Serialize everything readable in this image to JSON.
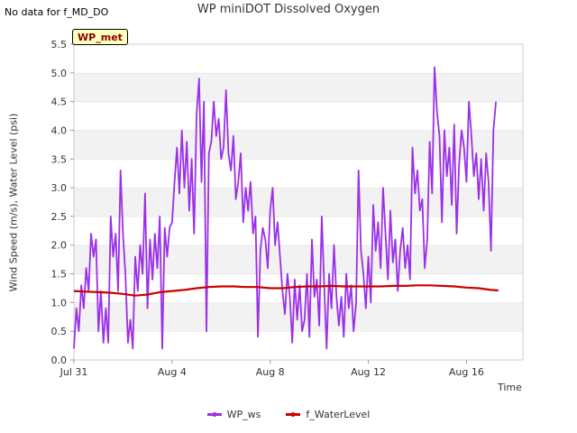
{
  "header": {
    "no_data_text": "No data for f_MD_DO",
    "badge_text": "WP_met"
  },
  "chart_data": {
    "type": "line",
    "title": "WP miniDOT Dissolved Oxygen",
    "xlabel": "Time",
    "ylabel": "Wind Speed (m/s), Water Level (psi)",
    "ylim": [
      0,
      5.5
    ],
    "yticks": [
      0.0,
      0.5,
      1.0,
      1.5,
      2.0,
      2.5,
      3.0,
      3.5,
      4.0,
      4.5,
      5.0,
      5.5
    ],
    "xlim": [
      0,
      18.3
    ],
    "xticks": [
      {
        "label": "Jul 31",
        "day": 0
      },
      {
        "label": "Aug 4",
        "day": 4
      },
      {
        "label": "Aug 8",
        "day": 8
      },
      {
        "label": "Aug 12",
        "day": 12
      },
      {
        "label": "Aug 16",
        "day": 16
      }
    ],
    "grid": "horizontal bands",
    "legend_position": "bottom",
    "series": [
      {
        "name": "WP_ws",
        "color": "#9b30e6",
        "x": [
          0.0,
          0.1,
          0.2,
          0.3,
          0.4,
          0.5,
          0.6,
          0.7,
          0.8,
          0.9,
          1.0,
          1.1,
          1.2,
          1.3,
          1.4,
          1.5,
          1.6,
          1.7,
          1.8,
          1.9,
          2.0,
          2.1,
          2.2,
          2.3,
          2.4,
          2.5,
          2.6,
          2.7,
          2.8,
          2.9,
          3.0,
          3.1,
          3.2,
          3.3,
          3.4,
          3.5,
          3.6,
          3.7,
          3.8,
          3.9,
          4.0,
          4.1,
          4.2,
          4.3,
          4.4,
          4.5,
          4.6,
          4.7,
          4.8,
          4.9,
          5.0,
          5.1,
          5.2,
          5.3,
          5.4,
          5.5,
          5.6,
          5.7,
          5.8,
          5.9,
          6.0,
          6.1,
          6.2,
          6.3,
          6.4,
          6.5,
          6.6,
          6.7,
          6.8,
          6.9,
          7.0,
          7.1,
          7.2,
          7.3,
          7.4,
          7.5,
          7.6,
          7.7,
          7.8,
          7.9,
          8.0,
          8.1,
          8.2,
          8.3,
          8.4,
          8.5,
          8.6,
          8.7,
          8.8,
          8.9,
          9.0,
          9.1,
          9.2,
          9.3,
          9.4,
          9.5,
          9.6,
          9.7,
          9.8,
          9.9,
          10.0,
          10.1,
          10.2,
          10.3,
          10.4,
          10.5,
          10.6,
          10.7,
          10.8,
          10.9,
          11.0,
          11.1,
          11.2,
          11.3,
          11.4,
          11.5,
          11.6,
          11.7,
          11.8,
          11.9,
          12.0,
          12.1,
          12.2,
          12.3,
          12.4,
          12.5,
          12.6,
          12.7,
          12.8,
          12.9,
          13.0,
          13.1,
          13.2,
          13.3,
          13.4,
          13.5,
          13.6,
          13.7,
          13.8,
          13.9,
          14.0,
          14.1,
          14.2,
          14.3,
          14.4,
          14.5,
          14.6,
          14.7,
          14.8,
          14.9,
          15.0,
          15.1,
          15.2,
          15.3,
          15.4,
          15.5,
          15.6,
          15.7,
          15.8,
          15.9,
          16.0,
          16.1,
          16.2,
          16.3,
          16.4,
          16.5,
          16.6,
          16.7,
          16.8,
          16.9,
          17.0,
          17.1,
          17.2
        ],
        "values": [
          0.2,
          0.9,
          0.5,
          1.3,
          0.9,
          1.6,
          1.2,
          2.2,
          1.8,
          2.1,
          0.5,
          1.2,
          0.3,
          0.9,
          0.3,
          2.5,
          1.8,
          2.2,
          1.2,
          3.3,
          2.2,
          1.5,
          0.3,
          0.7,
          0.2,
          1.8,
          1.2,
          2.0,
          1.5,
          2.9,
          0.9,
          2.1,
          1.4,
          2.2,
          1.6,
          2.5,
          0.2,
          2.3,
          1.8,
          2.3,
          2.4,
          3.1,
          3.7,
          2.9,
          4.0,
          3.0,
          3.8,
          2.6,
          3.5,
          2.2,
          4.3,
          4.9,
          3.1,
          4.5,
          0.5,
          3.6,
          3.8,
          4.5,
          3.9,
          4.2,
          3.5,
          3.7,
          4.7,
          3.6,
          3.3,
          3.9,
          2.8,
          3.1,
          3.6,
          2.4,
          3.0,
          2.6,
          3.1,
          2.2,
          2.5,
          0.4,
          1.9,
          2.3,
          2.1,
          1.6,
          2.6,
          3.0,
          2.0,
          2.4,
          1.8,
          1.2,
          0.8,
          1.5,
          1.1,
          0.3,
          1.4,
          0.7,
          1.3,
          0.5,
          0.7,
          1.5,
          0.4,
          2.1,
          1.1,
          1.4,
          0.6,
          2.5,
          1.3,
          0.2,
          1.5,
          0.9,
          2.0,
          1.1,
          0.6,
          1.1,
          0.4,
          1.5,
          0.9,
          1.3,
          0.5,
          1.0,
          3.3,
          1.9,
          1.5,
          0.9,
          1.8,
          1.0,
          2.7,
          1.9,
          2.4,
          1.6,
          3.0,
          2.2,
          1.4,
          2.6,
          1.7,
          2.1,
          1.2,
          1.9,
          2.3,
          1.6,
          2.0,
          1.4,
          3.7,
          2.9,
          3.3,
          2.6,
          2.8,
          1.6,
          2.1,
          3.8,
          2.9,
          5.1,
          4.3,
          3.9,
          2.4,
          4.0,
          3.2,
          3.7,
          2.7,
          4.1,
          2.2,
          3.4,
          4.0,
          3.7,
          3.1,
          4.5,
          3.9,
          3.2,
          3.6,
          2.8,
          3.5,
          2.6,
          3.6,
          3.1,
          1.9,
          4.0,
          4.5
        ]
      },
      {
        "name": "f_WaterLevel",
        "color": "#cc0000",
        "x": [
          0.0,
          0.5,
          1.0,
          1.5,
          2.0,
          2.5,
          3.0,
          3.5,
          4.0,
          4.5,
          5.0,
          5.5,
          6.0,
          6.5,
          7.0,
          7.5,
          8.0,
          8.5,
          9.0,
          9.5,
          10.0,
          10.5,
          11.0,
          11.5,
          12.0,
          12.5,
          13.0,
          13.5,
          14.0,
          14.5,
          15.0,
          15.5,
          16.0,
          16.5,
          17.0,
          17.3
        ],
        "values": [
          1.2,
          1.19,
          1.18,
          1.17,
          1.15,
          1.12,
          1.14,
          1.18,
          1.2,
          1.22,
          1.25,
          1.27,
          1.28,
          1.28,
          1.27,
          1.27,
          1.25,
          1.25,
          1.27,
          1.28,
          1.28,
          1.29,
          1.28,
          1.28,
          1.28,
          1.28,
          1.29,
          1.29,
          1.3,
          1.3,
          1.29,
          1.28,
          1.26,
          1.25,
          1.22,
          1.21
        ]
      }
    ]
  }
}
